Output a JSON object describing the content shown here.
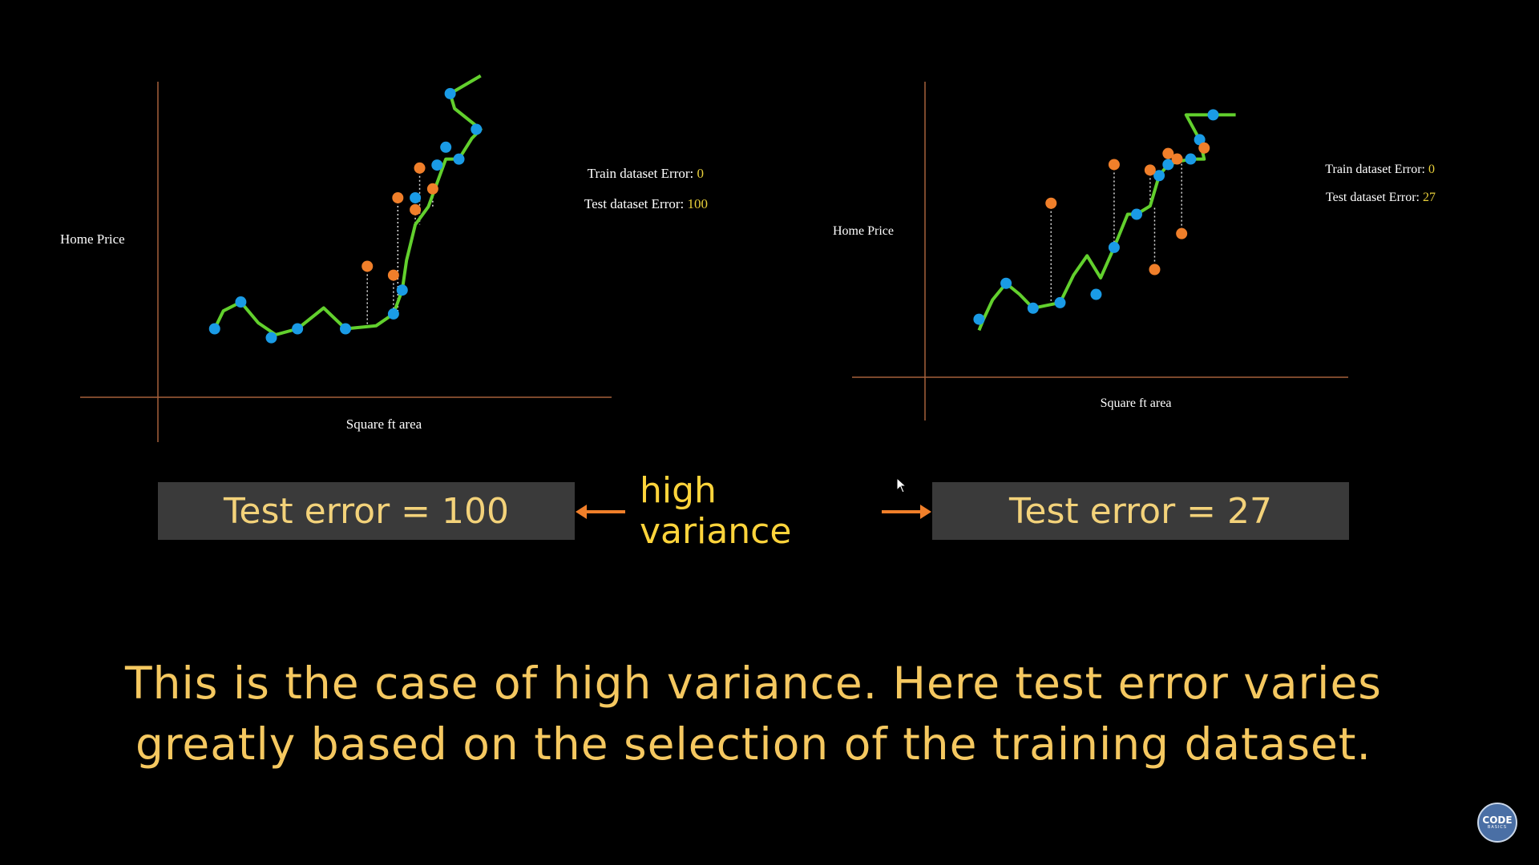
{
  "chart_data": [
    {
      "type": "line",
      "ylabel": "Home Price",
      "xlabel": "Square ft area",
      "annotations": [
        {
          "label": "Train dataset Error: ",
          "value": "0"
        },
        {
          "label": "Test dataset Error: ",
          "value": "100"
        }
      ],
      "train_points": [
        [
          3,
          17
        ],
        [
          9,
          26
        ],
        [
          16,
          14
        ],
        [
          22,
          17
        ],
        [
          33,
          17
        ],
        [
          44,
          22
        ],
        [
          46,
          30
        ],
        [
          49,
          61
        ],
        [
          54,
          72
        ],
        [
          56,
          78
        ],
        [
          59,
          74
        ],
        [
          63,
          84
        ],
        [
          57,
          96
        ]
      ],
      "test_points": [
        [
          38,
          38
        ],
        [
          44,
          35
        ],
        [
          45,
          61
        ],
        [
          49,
          57
        ],
        [
          50,
          71
        ],
        [
          53,
          64
        ]
      ],
      "fit_curve": [
        [
          3,
          17
        ],
        [
          5,
          23
        ],
        [
          9,
          26
        ],
        [
          13,
          19
        ],
        [
          17,
          15
        ],
        [
          22,
          17
        ],
        [
          28,
          24
        ],
        [
          33,
          17
        ],
        [
          40,
          18
        ],
        [
          44,
          22
        ],
        [
          46,
          30
        ],
        [
          47,
          40
        ],
        [
          49,
          52
        ],
        [
          52,
          58
        ],
        [
          56,
          74
        ],
        [
          59,
          74
        ],
        [
          62,
          81
        ],
        [
          64,
          84
        ],
        [
          58,
          91
        ],
        [
          57,
          96
        ],
        [
          64,
          102
        ]
      ],
      "x_range": [
        -10,
        94
      ],
      "y_range": [
        -6,
        100
      ]
    },
    {
      "type": "line",
      "ylabel": "Home Price",
      "xlabel": "Square ft area",
      "annotations": [
        {
          "label": "Train dataset Error: ",
          "value": "0"
        },
        {
          "label": "Test dataset Error: ",
          "value": "27"
        }
      ],
      "train_points": [
        [
          8,
          14
        ],
        [
          14,
          27
        ],
        [
          20,
          18
        ],
        [
          26,
          20
        ],
        [
          34,
          23
        ],
        [
          38,
          40
        ],
        [
          43,
          52
        ],
        [
          48,
          66
        ],
        [
          50,
          70
        ],
        [
          55,
          72
        ],
        [
          57,
          79
        ],
        [
          60,
          88
        ]
      ],
      "test_points": [
        [
          24,
          56
        ],
        [
          38,
          70
        ],
        [
          46,
          68
        ],
        [
          47,
          32
        ],
        [
          50,
          74
        ],
        [
          52,
          72
        ],
        [
          53,
          45
        ],
        [
          58,
          76
        ]
      ],
      "fit_curve": [
        [
          8,
          10
        ],
        [
          9,
          14
        ],
        [
          11,
          21
        ],
        [
          14,
          27
        ],
        [
          17,
          23
        ],
        [
          20,
          18
        ],
        [
          23,
          19
        ],
        [
          26,
          20
        ],
        [
          29,
          30
        ],
        [
          32,
          37
        ],
        [
          35,
          29
        ],
        [
          38,
          40
        ],
        [
          41,
          52
        ],
        [
          43,
          52
        ],
        [
          46,
          55
        ],
        [
          48,
          66
        ],
        [
          50,
          70
        ],
        [
          52,
          71
        ],
        [
          55,
          72
        ],
        [
          58,
          72
        ],
        [
          57,
          79
        ],
        [
          54,
          88
        ],
        [
          60,
          88
        ],
        [
          65,
          88
        ]
      ],
      "x_range": [
        -4,
        90
      ],
      "y_range": [
        -7,
        100
      ]
    }
  ],
  "boxes": {
    "left": "Test error = 100",
    "right": "Test error = 27",
    "middle": "high variance"
  },
  "caption": {
    "line1": "This is the case of high variance. Here test error varies",
    "line2": "greatly based on the selection of the training dataset."
  },
  "logo": {
    "line1": "CODE",
    "line2": "BASICS"
  },
  "colors": {
    "curve": "#62d02d",
    "train_point": "#1a9be6",
    "test_point": "#f07f2a",
    "axis": "#a6603a",
    "label_text": "#ffffff",
    "value_text": "#e8cf3a",
    "box_text": "#f3d27a",
    "middle_text": "#ffd43b",
    "arrow": "#f07f2a",
    "caption_text": "#f5c860"
  }
}
